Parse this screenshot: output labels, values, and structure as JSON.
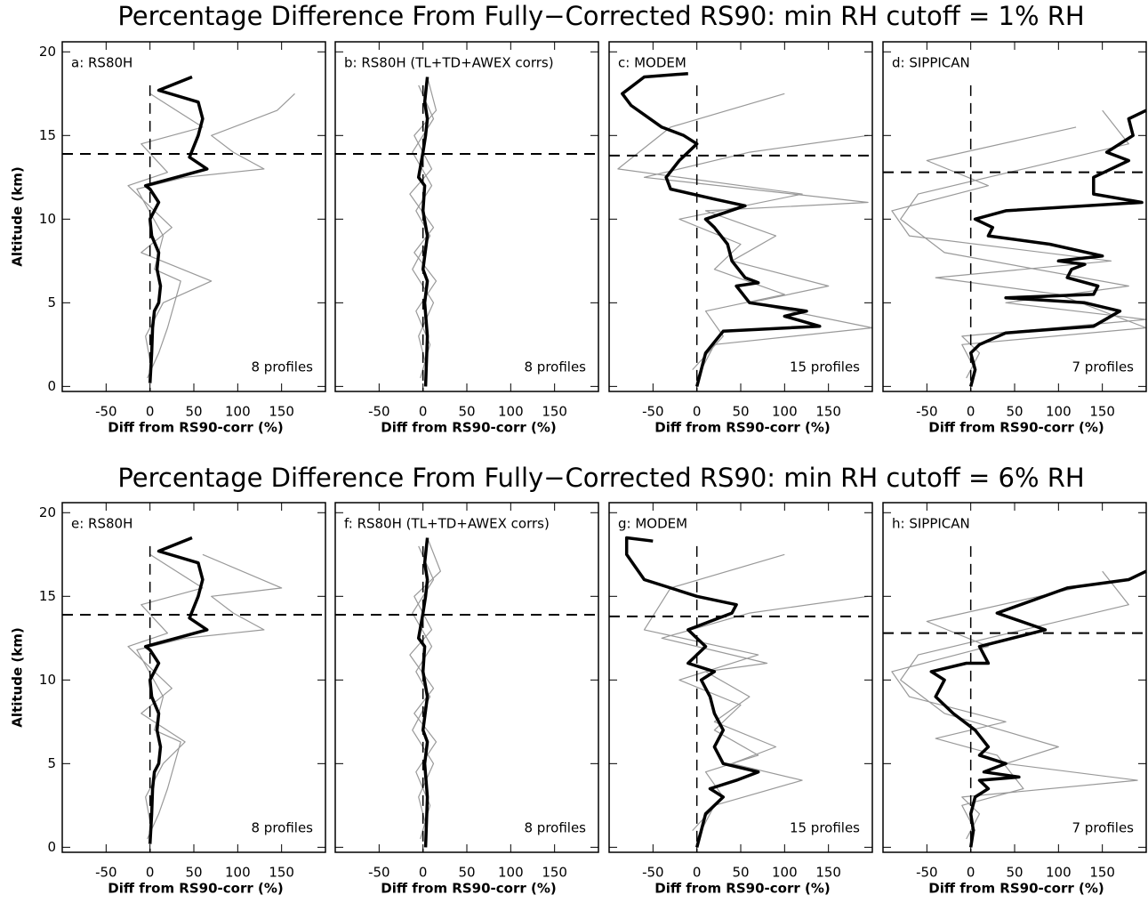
{
  "figure_titles": [
    "Percentage Difference From Fully−Corrected RS90: min RH cutoff = 1% RH",
    "Percentage Difference From Fully−Corrected RS90: min RH cutoff = 6% RH"
  ],
  "chart_data": [
    {
      "type": "line",
      "panel_label": "a: RS80H",
      "annotation": "8 profiles",
      "xlabel": "Diff from RS90-corr (%)",
      "ylabel": "Altitude (km)",
      "show_ytick_labels": true,
      "xlim": [
        -100,
        200
      ],
      "ylim": [
        -0.3,
        20.6
      ],
      "xticks": [
        -50,
        0,
        50,
        100,
        150
      ],
      "yticks": [
        0,
        5,
        10,
        15,
        20
      ],
      "vline": 0,
      "hline": 13.9,
      "series": [
        {
          "color": "#999999",
          "x": [
            -3,
            10,
            20,
            35,
            5,
            15,
            -15,
            40,
            130,
            95,
            70,
            145,
            165
          ],
          "y": [
            0.5,
            2,
            3.5,
            6.3,
            7,
            9,
            11.8,
            12.5,
            13,
            14,
            15,
            16.5,
            17.5
          ]
        },
        {
          "color": "#999999",
          "x": [
            2,
            -5,
            15,
            70,
            -10,
            25,
            5,
            -25,
            20,
            -10,
            60,
            0
          ],
          "y": [
            1,
            3,
            5,
            6.3,
            8,
            9.5,
            10.5,
            12,
            12.8,
            14.5,
            15.5,
            17.5
          ]
        },
        {
          "color": "#000000",
          "x": [
            0,
            2,
            3,
            5,
            10,
            12,
            8,
            10,
            2,
            0,
            10,
            0,
            -5,
            30,
            65,
            45,
            55,
            60,
            55,
            10,
            48
          ],
          "y": [
            0.2,
            2,
            3.5,
            4.5,
            5,
            6,
            7,
            8,
            9,
            10,
            11,
            11.8,
            12,
            12.5,
            13,
            13.7,
            15,
            16,
            17,
            17.7,
            18.5
          ]
        }
      ]
    },
    {
      "type": "line",
      "panel_label": "b: RS80H (TL+TD+AWEX corrs)",
      "annotation": "8 profiles",
      "xlabel": "Diff from RS90-corr (%)",
      "show_ytick_labels": false,
      "xlim": [
        -100,
        200
      ],
      "ylim": [
        -0.3,
        20.6
      ],
      "xticks": [
        -50,
        0,
        50,
        100,
        150
      ],
      "yticks": [
        0,
        5,
        10,
        15,
        20
      ],
      "vline": 0,
      "hline": 13.9,
      "series": [
        {
          "color": "#999999",
          "x": [
            -3,
            8,
            -8,
            15,
            -10,
            12,
            -15,
            10,
            -10,
            15,
            5
          ],
          "y": [
            0.5,
            2.5,
            4.5,
            6.3,
            8,
            9.5,
            11.5,
            13,
            15,
            16.5,
            18.5
          ]
        },
        {
          "color": "#999999",
          "x": [
            5,
            -5,
            12,
            -12,
            8,
            -8,
            10,
            -12,
            12,
            -5
          ],
          "y": [
            1,
            3,
            5,
            7,
            9,
            10.5,
            12,
            14,
            16,
            18
          ]
        },
        {
          "color": "#000000",
          "x": [
            3,
            5,
            2,
            5,
            0,
            5,
            0,
            2,
            -5,
            0,
            3,
            5,
            2,
            5
          ],
          "y": [
            0,
            3,
            5,
            6.3,
            7,
            9,
            10.5,
            12,
            12.5,
            14,
            15,
            16,
            17,
            18.5
          ]
        }
      ]
    },
    {
      "type": "line",
      "panel_label": "c: MODEM",
      "annotation": "15 profiles",
      "xlabel": "Diff from RS90-corr (%)",
      "show_ytick_labels": false,
      "xlim": [
        -100,
        200
      ],
      "ylim": [
        -0.3,
        20.6
      ],
      "xticks": [
        -50,
        0,
        50,
        100,
        150
      ],
      "yticks": [
        0,
        5,
        10,
        15,
        20
      ],
      "vline": 0,
      "hline": 13.8,
      "series": [
        {
          "color": "#999999",
          "x": [
            0,
            20,
            200,
            60,
            150,
            40,
            90,
            10,
            195,
            -60,
            60,
            195
          ],
          "y": [
            0.5,
            2.5,
            3.5,
            5,
            6,
            7.5,
            9,
            10.5,
            11,
            12.5,
            14,
            15
          ]
        },
        {
          "color": "#999999",
          "x": [
            -5,
            30,
            10,
            100,
            20,
            50,
            -20,
            120,
            -90,
            -30,
            100
          ],
          "y": [
            1,
            3,
            4.5,
            5.5,
            7,
            8.5,
            10,
            11.5,
            13,
            15.5,
            17.5
          ]
        },
        {
          "color": "#000000",
          "x": [
            0,
            5,
            10,
            30,
            140,
            100,
            125,
            60,
            45,
            70,
            55,
            40,
            35,
            20,
            10,
            55,
            20,
            -30,
            -35,
            -20,
            0,
            -15,
            -40,
            -75,
            -85,
            -60,
            -10
          ],
          "y": [
            0,
            1,
            2,
            3.3,
            3.6,
            4.2,
            4.5,
            5,
            6,
            6.2,
            6.5,
            7.5,
            8.5,
            9.5,
            10,
            10.8,
            11.2,
            11.8,
            12.5,
            13.5,
            14.5,
            15,
            15.5,
            16.8,
            17.5,
            18.5,
            18.7
          ]
        }
      ]
    },
    {
      "type": "line",
      "panel_label": "d: SIPPICAN",
      "annotation": "7 profiles",
      "xlabel": "Diff from RS90-corr (%)",
      "show_ytick_labels": false,
      "xlim": [
        -100,
        200
      ],
      "ylim": [
        -0.3,
        20.6
      ],
      "xticks": [
        -50,
        0,
        50,
        100,
        150
      ],
      "yticks": [
        0,
        5,
        10,
        15,
        20
      ],
      "vline": 0,
      "hline": 12.8,
      "series": [
        {
          "color": "#999999",
          "x": [
            -5,
            10,
            -10,
            200,
            40,
            180,
            -30,
            -80,
            -60,
            60,
            180,
            150
          ],
          "y": [
            0.5,
            2,
            3,
            4,
            5,
            6,
            8,
            10,
            11.5,
            13,
            14.5,
            16.5
          ]
        },
        {
          "color": "#999999",
          "x": [
            5,
            -10,
            200,
            100,
            -40,
            160,
            -70,
            -90,
            20,
            -50,
            120
          ],
          "y": [
            1,
            2.5,
            3.5,
            5.5,
            6.5,
            7.5,
            9,
            10.5,
            12,
            13.5,
            15.5
          ]
        },
        {
          "color": "#000000",
          "x": [
            0,
            5,
            0,
            10,
            40,
            140,
            170,
            130,
            40,
            140,
            145,
            110,
            115,
            130,
            100,
            150,
            90,
            20,
            25,
            5,
            40,
            195,
            140,
            140,
            180,
            155,
            185,
            180,
            200
          ],
          "y": [
            0,
            1,
            2,
            2.5,
            3.2,
            3.6,
            4.5,
            5,
            5.3,
            5.5,
            6,
            6.5,
            7,
            7.3,
            7.5,
            7.8,
            8.5,
            9,
            9.5,
            10,
            10.5,
            11,
            11.5,
            12.5,
            13.5,
            14,
            15,
            16,
            16.5
          ]
        }
      ]
    },
    {
      "type": "line",
      "panel_label": "e: RS80H",
      "annotation": "8 profiles",
      "xlabel": "Diff from RS90-corr (%)",
      "ylabel": "Altitude (km)",
      "show_ytick_labels": true,
      "xlim": [
        -100,
        200
      ],
      "ylim": [
        -0.3,
        20.6
      ],
      "xticks": [
        -50,
        0,
        50,
        100,
        150
      ],
      "yticks": [
        0,
        5,
        10,
        15,
        20
      ],
      "vline": 0,
      "hline": 13.9,
      "series": [
        {
          "color": "#999999",
          "x": [
            -3,
            10,
            20,
            35,
            5,
            15,
            -15,
            40,
            130,
            95,
            70,
            150,
            60
          ],
          "y": [
            0.5,
            2,
            3.5,
            6.3,
            7,
            9,
            11.8,
            12.5,
            13,
            14,
            15,
            15.5,
            17.5
          ]
        },
        {
          "color": "#999999",
          "x": [
            2,
            -5,
            15,
            40,
            -10,
            25,
            5,
            -25,
            20,
            -10,
            60,
            0
          ],
          "y": [
            1,
            3,
            5,
            6.3,
            8,
            9.5,
            10.5,
            12,
            12.8,
            14.5,
            15.5,
            17.5
          ]
        },
        {
          "color": "#000000",
          "x": [
            0,
            2,
            3,
            5,
            10,
            12,
            8,
            10,
            2,
            0,
            10,
            0,
            -5,
            30,
            65,
            45,
            55,
            60,
            55,
            10,
            48
          ],
          "y": [
            0.2,
            2,
            3.5,
            4.5,
            5,
            6,
            7,
            8,
            9,
            10,
            11,
            11.8,
            12,
            12.5,
            13,
            13.7,
            15,
            16,
            17,
            17.7,
            18.5
          ]
        }
      ]
    },
    {
      "type": "line",
      "panel_label": "f: RS80H (TL+TD+AWEX corrs)",
      "annotation": "8 profiles",
      "xlabel": "Diff from RS90-corr (%)",
      "show_ytick_labels": false,
      "xlim": [
        -100,
        200
      ],
      "ylim": [
        -0.3,
        20.6
      ],
      "xticks": [
        -50,
        0,
        50,
        100,
        150
      ],
      "yticks": [
        0,
        5,
        10,
        15,
        20
      ],
      "vline": 0,
      "hline": 13.9,
      "series": [
        {
          "color": "#999999",
          "x": [
            -3,
            8,
            -8,
            15,
            -10,
            12,
            -15,
            10,
            -10,
            20,
            5
          ],
          "y": [
            0.5,
            2.5,
            4.5,
            6.3,
            8,
            9.5,
            11.5,
            13,
            15,
            16.5,
            18.5
          ]
        },
        {
          "color": "#999999",
          "x": [
            5,
            -5,
            12,
            -12,
            8,
            -8,
            10,
            -12,
            12,
            -5
          ],
          "y": [
            1,
            3,
            5,
            7,
            9,
            10.5,
            12,
            14,
            16,
            18
          ]
        },
        {
          "color": "#000000",
          "x": [
            3,
            5,
            2,
            5,
            0,
            5,
            0,
            2,
            -5,
            0,
            3,
            5,
            2,
            5
          ],
          "y": [
            0,
            3,
            5,
            6.3,
            7,
            9,
            10.5,
            12,
            12.5,
            14,
            15,
            16,
            17,
            18.5
          ]
        }
      ]
    },
    {
      "type": "line",
      "panel_label": "g: MODEM",
      "annotation": "15 profiles",
      "xlabel": "Diff from RS90-corr (%)",
      "show_ytick_labels": false,
      "xlim": [
        -100,
        200
      ],
      "ylim": [
        -0.3,
        20.6
      ],
      "xticks": [
        -50,
        0,
        50,
        100,
        150
      ],
      "yticks": [
        0,
        5,
        10,
        15,
        20
      ],
      "vline": 0,
      "hline": 13.8,
      "series": [
        {
          "color": "#999999",
          "x": [
            0,
            20,
            120,
            40,
            90,
            20,
            60,
            10,
            80,
            -40,
            60,
            195
          ],
          "y": [
            0.5,
            2.5,
            4,
            5,
            6,
            7.5,
            9,
            10.5,
            11,
            12.5,
            14,
            15
          ]
        },
        {
          "color": "#999999",
          "x": [
            -5,
            30,
            10,
            70,
            20,
            50,
            -20,
            70,
            -60,
            -30,
            100
          ],
          "y": [
            1,
            3,
            4.5,
            5.5,
            7,
            8.5,
            10,
            11.5,
            13,
            15.5,
            17.5
          ]
        },
        {
          "color": "#000000",
          "x": [
            0,
            10,
            30,
            15,
            45,
            70,
            30,
            20,
            30,
            20,
            15,
            5,
            20,
            -10,
            10,
            -10,
            40,
            45,
            0,
            -60,
            -80,
            -80,
            -50
          ],
          "y": [
            0,
            2,
            3,
            3.5,
            4,
            4.5,
            5,
            6,
            7,
            8,
            9,
            10,
            10.5,
            11,
            12,
            13,
            14,
            14.5,
            15,
            16,
            17.5,
            18.5,
            18.3
          ]
        }
      ]
    },
    {
      "type": "line",
      "panel_label": "h: SIPPICAN",
      "annotation": "7 profiles",
      "xlabel": "Diff from RS90-corr (%)",
      "show_ytick_labels": false,
      "xlim": [
        -100,
        200
      ],
      "ylim": [
        -0.3,
        20.6
      ],
      "xticks": [
        -50,
        0,
        50,
        100,
        150
      ],
      "yticks": [
        0,
        5,
        10,
        15,
        20
      ],
      "vline": 0,
      "hline": 12.8,
      "series": [
        {
          "color": "#999999",
          "x": [
            -5,
            10,
            -10,
            190,
            40,
            100,
            -30,
            -80,
            -60,
            60,
            180,
            150
          ],
          "y": [
            0.5,
            2,
            3,
            4,
            5,
            6,
            8,
            10,
            11.5,
            13,
            14.5,
            16.5
          ]
        },
        {
          "color": "#999999",
          "x": [
            5,
            -10,
            60,
            30,
            -40,
            40,
            -70,
            -90,
            20,
            -50,
            120
          ],
          "y": [
            1,
            2.5,
            3.5,
            5.5,
            6.5,
            7.5,
            9,
            10.5,
            12,
            13.5,
            15.5
          ]
        },
        {
          "color": "#000000",
          "x": [
            0,
            3,
            0,
            5,
            20,
            10,
            55,
            15,
            40,
            10,
            20,
            5,
            -20,
            -40,
            -30,
            -45,
            -5,
            20,
            10,
            85,
            30,
            110,
            180,
            200
          ],
          "y": [
            0,
            1,
            2,
            3,
            3.5,
            4,
            4.2,
            4.5,
            5,
            5.5,
            6,
            7,
            8,
            9,
            10,
            10.5,
            11,
            11,
            12,
            13,
            14,
            15.5,
            16,
            16.5
          ]
        }
      ]
    }
  ]
}
